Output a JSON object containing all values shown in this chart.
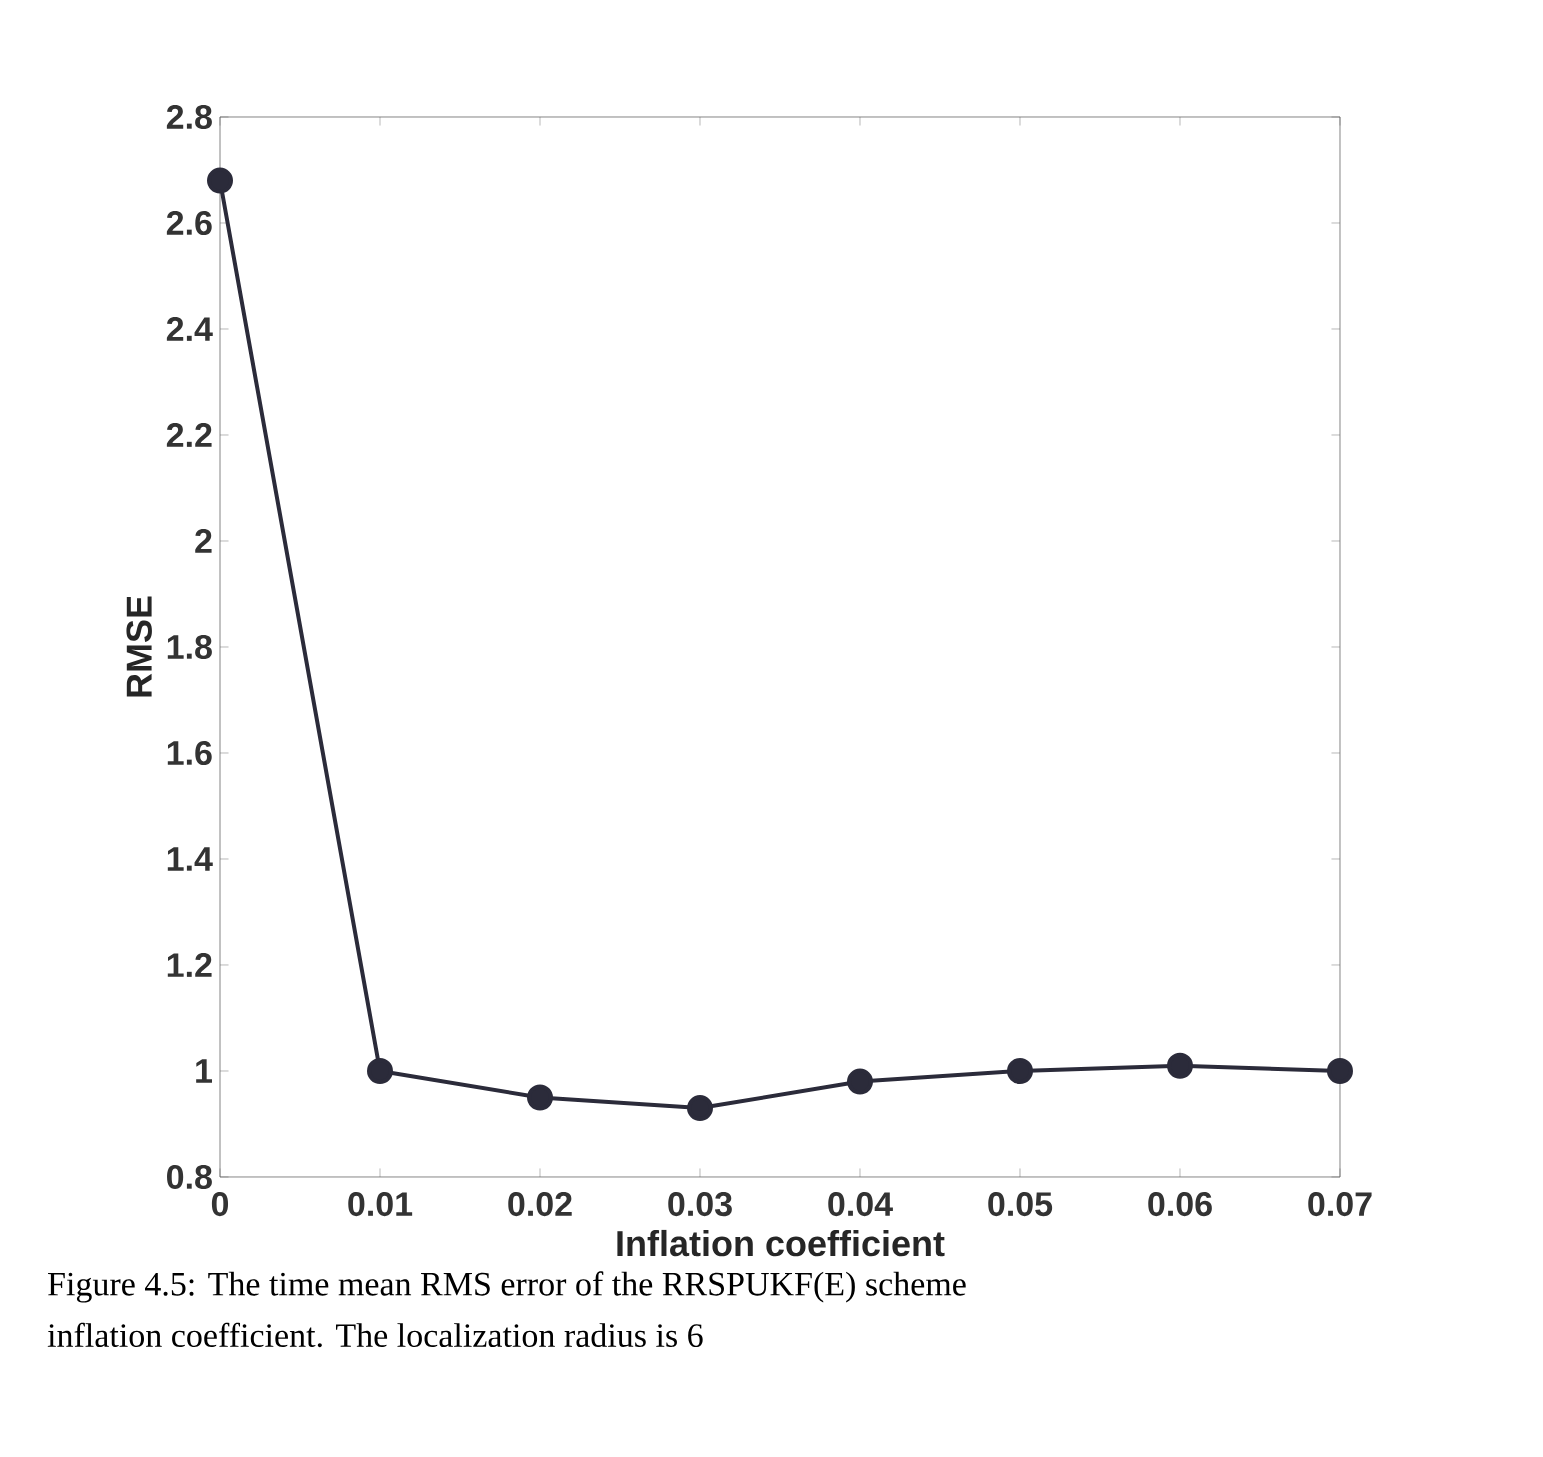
{
  "chart_data": {
    "type": "line",
    "xlabel": "Inflation coefficient",
    "ylabel": "RMSE",
    "x": [
      0,
      0.01,
      0.02,
      0.03,
      0.04,
      0.05,
      0.06,
      0.07
    ],
    "values": [
      2.68,
      1.0,
      0.95,
      0.93,
      0.98,
      1.0,
      1.01,
      1.0
    ],
    "color": "#2b2b3a",
    "marker": "circle",
    "line_style": "solid",
    "xlim": [
      0,
      0.07
    ],
    "xticks": [
      0,
      0.01,
      0.02,
      0.03,
      0.04,
      0.05,
      0.06,
      0.07
    ],
    "ylim": [
      0.8,
      2.8
    ],
    "yticks": [
      0.8,
      1,
      1.2,
      1.4,
      1.6,
      1.8,
      2,
      2.2,
      2.4,
      2.6,
      2.8
    ],
    "grid": false,
    "annotations": [
      "Figure 4.5: The time mean RMS error of the RRSPUKF(E) scheme",
      "inflation coefficient. The localization radius is 6"
    ]
  }
}
